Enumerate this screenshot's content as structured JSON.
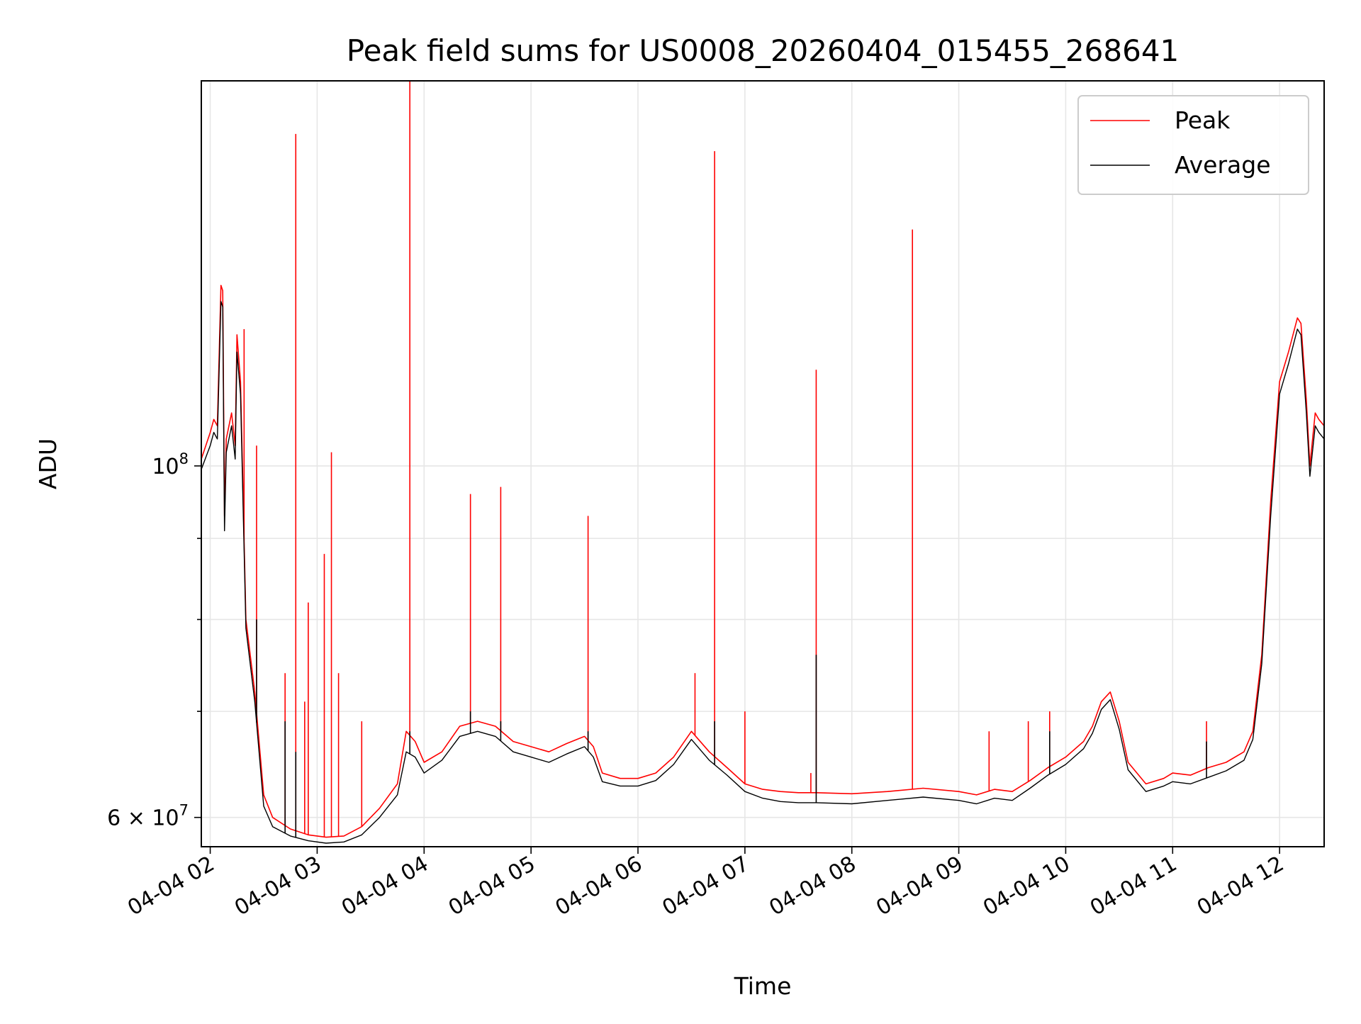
{
  "chart_data": {
    "type": "line",
    "title": "Peak field sums for US0008_20260404_015455_268641",
    "xlabel": "Time",
    "ylabel": "ADU",
    "y_scale": "log",
    "x_range": [
      "04-04 01:55",
      "04-04 12:25"
    ],
    "ylim": [
      57500000,
      175000000
    ],
    "grid": true,
    "legend_position": "upper-right",
    "x_ticks": [
      {
        "value": "04-04 02:00",
        "label": "04-04 02"
      },
      {
        "value": "04-04 03:00",
        "label": "04-04 03"
      },
      {
        "value": "04-04 04:00",
        "label": "04-04 04"
      },
      {
        "value": "04-04 05:00",
        "label": "04-04 05"
      },
      {
        "value": "04-04 06:00",
        "label": "04-04 06"
      },
      {
        "value": "04-04 07:00",
        "label": "04-04 07"
      },
      {
        "value": "04-04 08:00",
        "label": "04-04 08"
      },
      {
        "value": "04-04 09:00",
        "label": "04-04 09"
      },
      {
        "value": "04-04 10:00",
        "label": "04-04 10"
      },
      {
        "value": "04-04 11:00",
        "label": "04-04 11"
      },
      {
        "value": "04-04 12:00",
        "label": "04-04 12"
      }
    ],
    "y_major_ticks": [
      {
        "value": 60000000,
        "label_base": "6 × 10",
        "label_exp": "7"
      },
      {
        "value": 100000000,
        "label_base": "10",
        "label_exp": "8"
      }
    ],
    "y_minor_ticks": [
      70000000,
      80000000,
      90000000
    ],
    "series": [
      {
        "name": "Peak",
        "color": "#ff0000",
        "points": [
          [
            "04-04 01:55",
            101000000
          ],
          [
            "04-04 02:00",
            105000000
          ],
          [
            "04-04 02:02",
            107000000
          ],
          [
            "04-04 02:04",
            106000000
          ],
          [
            "04-04 02:06",
            130000000
          ],
          [
            "04-04 02:07",
            129000000
          ],
          [
            "04-04 02:08",
            93000000
          ],
          [
            "04-04 02:09",
            104000000
          ],
          [
            "04-04 02:12",
            108000000
          ],
          [
            "04-04 02:14",
            103000000
          ],
          [
            "04-04 02:15",
            121000000
          ],
          [
            "04-04 02:17",
            113000000
          ],
          [
            "04-04 02:20",
            80000000
          ],
          [
            "04-04 02:25",
            72000000
          ],
          [
            "04-04 02:30",
            62000000
          ],
          [
            "04-04 02:35",
            60000000
          ],
          [
            "04-04 02:45",
            59000000
          ],
          [
            "04-04 02:55",
            58500000
          ],
          [
            "04-04 03:05",
            58300000
          ],
          [
            "04-04 03:15",
            58400000
          ],
          [
            "04-04 03:25",
            59200000
          ],
          [
            "04-04 03:35",
            60800000
          ],
          [
            "04-04 03:45",
            63000000
          ],
          [
            "04-04 03:50",
            68000000
          ],
          [
            "04-04 03:55",
            67000000
          ],
          [
            "04-04 04:00",
            65000000
          ],
          [
            "04-04 04:10",
            66000000
          ],
          [
            "04-04 04:20",
            68500000
          ],
          [
            "04-04 04:30",
            69000000
          ],
          [
            "04-04 04:40",
            68500000
          ],
          [
            "04-04 04:50",
            67000000
          ],
          [
            "04-04 05:00",
            66500000
          ],
          [
            "04-04 05:10",
            66000000
          ],
          [
            "04-04 05:20",
            66800000
          ],
          [
            "04-04 05:30",
            67500000
          ],
          [
            "04-04 05:35",
            66500000
          ],
          [
            "04-04 05:40",
            64000000
          ],
          [
            "04-04 05:50",
            63500000
          ],
          [
            "04-04 06:00",
            63500000
          ],
          [
            "04-04 06:10",
            64000000
          ],
          [
            "04-04 06:20",
            65500000
          ],
          [
            "04-04 06:30",
            68000000
          ],
          [
            "04-04 06:40",
            66000000
          ],
          [
            "04-04 06:50",
            64500000
          ],
          [
            "04-04 07:00",
            63000000
          ],
          [
            "04-04 07:10",
            62500000
          ],
          [
            "04-04 07:20",
            62300000
          ],
          [
            "04-04 07:30",
            62200000
          ],
          [
            "04-04 07:40",
            62200000
          ],
          [
            "04-04 08:00",
            62100000
          ],
          [
            "04-04 08:20",
            62300000
          ],
          [
            "04-04 08:40",
            62600000
          ],
          [
            "04-04 09:00",
            62300000
          ],
          [
            "04-04 09:10",
            62000000
          ],
          [
            "04-04 09:20",
            62500000
          ],
          [
            "04-04 09:30",
            62300000
          ],
          [
            "04-04 09:40",
            63300000
          ],
          [
            "04-04 09:50",
            64500000
          ],
          [
            "04-04 10:00",
            65500000
          ],
          [
            "04-04 10:10",
            67000000
          ],
          [
            "04-04 10:15",
            68500000
          ],
          [
            "04-04 10:20",
            71000000
          ],
          [
            "04-04 10:25",
            72000000
          ],
          [
            "04-04 10:30",
            69000000
          ],
          [
            "04-04 10:35",
            65000000
          ],
          [
            "04-04 10:45",
            63000000
          ],
          [
            "04-04 10:55",
            63500000
          ],
          [
            "04-04 11:00",
            64000000
          ],
          [
            "04-04 11:10",
            63800000
          ],
          [
            "04-04 11:20",
            64500000
          ],
          [
            "04-04 11:30",
            65000000
          ],
          [
            "04-04 11:40",
            66000000
          ],
          [
            "04-04 11:45",
            68000000
          ],
          [
            "04-04 11:50",
            76000000
          ],
          [
            "04-04 11:55",
            95000000
          ],
          [
            "04-04 12:00",
            113000000
          ],
          [
            "04-04 12:05",
            118000000
          ],
          [
            "04-04 12:10",
            124000000
          ],
          [
            "04-04 12:12",
            123000000
          ],
          [
            "04-04 12:15",
            110000000
          ],
          [
            "04-04 12:17",
            100000000
          ],
          [
            "04-04 12:20",
            108000000
          ],
          [
            "04-04 12:22",
            107000000
          ],
          [
            "04-04 12:25",
            106000000
          ]
        ],
        "spikes": [
          [
            "04-04 02:19",
            122000000
          ],
          [
            "04-04 02:26",
            103000000
          ],
          [
            "04-04 02:42",
            74000000
          ],
          [
            "04-04 02:48",
            162000000
          ],
          [
            "04-04 02:53",
            71000000
          ],
          [
            "04-04 02:55",
            82000000
          ],
          [
            "04-04 03:04",
            88000000
          ],
          [
            "04-04 03:08",
            102000000
          ],
          [
            "04-04 03:12",
            74000000
          ],
          [
            "04-04 03:25",
            69000000
          ],
          [
            "04-04 03:52",
            175000000
          ],
          [
            "04-04 04:26",
            96000000
          ],
          [
            "04-04 04:43",
            97000000
          ],
          [
            "04-04 05:32",
            93000000
          ],
          [
            "04-04 06:32",
            74000000
          ],
          [
            "04-04 06:43",
            158000000
          ],
          [
            "04-04 07:00",
            70000000
          ],
          [
            "04-04 07:37",
            64000000
          ],
          [
            "04-04 07:40",
            115000000
          ],
          [
            "04-04 08:34",
            141000000
          ],
          [
            "04-04 09:17",
            68000000
          ],
          [
            "04-04 09:39",
            69000000
          ],
          [
            "04-04 09:51",
            70000000
          ],
          [
            "04-04 11:19",
            69000000
          ]
        ]
      },
      {
        "name": "Average",
        "color": "#000000",
        "points": [
          [
            "04-04 01:55",
            99500000
          ],
          [
            "04-04 02:00",
            103000000
          ],
          [
            "04-04 02:02",
            105000000
          ],
          [
            "04-04 02:04",
            104000000
          ],
          [
            "04-04 02:06",
            127000000
          ],
          [
            "04-04 02:07",
            126000000
          ],
          [
            "04-04 02:08",
            91000000
          ],
          [
            "04-04 02:09",
            102000000
          ],
          [
            "04-04 02:12",
            106000000
          ],
          [
            "04-04 02:14",
            101000000
          ],
          [
            "04-04 02:15",
            118000000
          ],
          [
            "04-04 02:17",
            111000000
          ],
          [
            "04-04 02:20",
            79000000
          ],
          [
            "04-04 02:25",
            71000000
          ],
          [
            "04-04 02:30",
            61000000
          ],
          [
            "04-04 02:35",
            59200000
          ],
          [
            "04-04 02:45",
            58400000
          ],
          [
            "04-04 02:55",
            58000000
          ],
          [
            "04-04 03:05",
            57800000
          ],
          [
            "04-04 03:15",
            57900000
          ],
          [
            "04-04 03:25",
            58500000
          ],
          [
            "04-04 03:35",
            60000000
          ],
          [
            "04-04 03:45",
            62000000
          ],
          [
            "04-04 03:50",
            66000000
          ],
          [
            "04-04 03:55",
            65500000
          ],
          [
            "04-04 04:00",
            64000000
          ],
          [
            "04-04 04:10",
            65200000
          ],
          [
            "04-04 04:20",
            67500000
          ],
          [
            "04-04 04:30",
            68000000
          ],
          [
            "04-04 04:40",
            67500000
          ],
          [
            "04-04 04:50",
            66000000
          ],
          [
            "04-04 05:00",
            65500000
          ],
          [
            "04-04 05:10",
            65000000
          ],
          [
            "04-04 05:20",
            65800000
          ],
          [
            "04-04 05:30",
            66500000
          ],
          [
            "04-04 05:35",
            65500000
          ],
          [
            "04-04 05:40",
            63200000
          ],
          [
            "04-04 05:50",
            62800000
          ],
          [
            "04-04 06:00",
            62800000
          ],
          [
            "04-04 06:10",
            63300000
          ],
          [
            "04-04 06:20",
            64800000
          ],
          [
            "04-04 06:30",
            67200000
          ],
          [
            "04-04 06:40",
            65200000
          ],
          [
            "04-04 06:50",
            63800000
          ],
          [
            "04-04 07:00",
            62300000
          ],
          [
            "04-04 07:10",
            61700000
          ],
          [
            "04-04 07:20",
            61400000
          ],
          [
            "04-04 07:30",
            61300000
          ],
          [
            "04-04 07:40",
            61300000
          ],
          [
            "04-04 08:00",
            61200000
          ],
          [
            "04-04 08:20",
            61500000
          ],
          [
            "04-04 08:40",
            61800000
          ],
          [
            "04-04 09:00",
            61500000
          ],
          [
            "04-04 09:10",
            61200000
          ],
          [
            "04-04 09:20",
            61700000
          ],
          [
            "04-04 09:30",
            61500000
          ],
          [
            "04-04 09:40",
            62600000
          ],
          [
            "04-04 09:50",
            63800000
          ],
          [
            "04-04 10:00",
            64800000
          ],
          [
            "04-04 10:10",
            66300000
          ],
          [
            "04-04 10:15",
            67800000
          ],
          [
            "04-04 10:20",
            70200000
          ],
          [
            "04-04 10:25",
            71200000
          ],
          [
            "04-04 10:30",
            68200000
          ],
          [
            "04-04 10:35",
            64300000
          ],
          [
            "04-04 10:45",
            62300000
          ],
          [
            "04-04 10:55",
            62800000
          ],
          [
            "04-04 11:00",
            63200000
          ],
          [
            "04-04 11:10",
            63000000
          ],
          [
            "04-04 11:20",
            63600000
          ],
          [
            "04-04 11:30",
            64200000
          ],
          [
            "04-04 11:40",
            65200000
          ],
          [
            "04-04 11:45",
            67200000
          ],
          [
            "04-04 11:50",
            75000000
          ],
          [
            "04-04 11:55",
            93000000
          ],
          [
            "04-04 12:00",
            111000000
          ],
          [
            "04-04 12:05",
            116000000
          ],
          [
            "04-04 12:10",
            122000000
          ],
          [
            "04-04 12:12",
            121000000
          ],
          [
            "04-04 12:15",
            108000000
          ],
          [
            "04-04 12:17",
            98500000
          ],
          [
            "04-04 12:20",
            106000000
          ],
          [
            "04-04 12:22",
            105000000
          ],
          [
            "04-04 12:25",
            104000000
          ]
        ],
        "spikes": [
          [
            "04-04 02:26",
            80000000
          ],
          [
            "04-04 02:42",
            69000000
          ],
          [
            "04-04 02:48",
            66000000
          ],
          [
            "04-04 03:52",
            68000000
          ],
          [
            "04-04 04:26",
            70000000
          ],
          [
            "04-04 04:43",
            69000000
          ],
          [
            "04-04 05:32",
            68000000
          ],
          [
            "04-04 06:43",
            69000000
          ],
          [
            "04-04 07:40",
            76000000
          ],
          [
            "04-04 09:51",
            68000000
          ],
          [
            "04-04 11:19",
            67000000
          ]
        ]
      }
    ]
  }
}
